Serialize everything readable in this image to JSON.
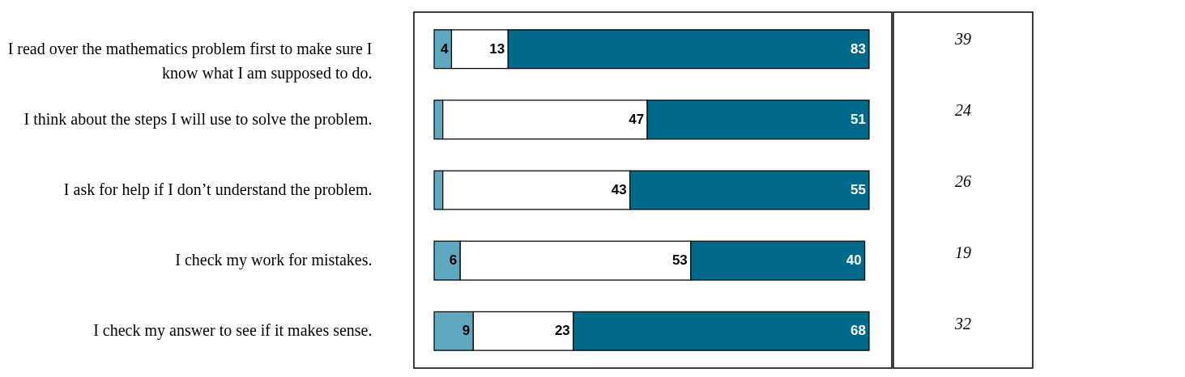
{
  "chart_data": {
    "type": "bar",
    "orientation": "horizontal",
    "stacked": true,
    "categories": [
      "I read over the mathematics problem first to make sure I know what I am supposed to do.",
      "I think about the steps I will use to solve the problem.",
      "I ask for help if I don’t understand the problem.",
      "I check my work for mistakes.",
      "I check my answer to see if it makes sense."
    ],
    "series": [
      {
        "color": "#5fa8c0",
        "values": [
          4,
          2,
          2,
          6,
          9
        ],
        "value_labels": [
          "4",
          null,
          null,
          "6",
          "9"
        ]
      },
      {
        "color": "#ffffff",
        "values": [
          13,
          47,
          43,
          53,
          23
        ],
        "value_labels": [
          "13",
          "47",
          "43",
          "53",
          "23"
        ]
      },
      {
        "color": "#006a8a",
        "values": [
          83,
          51,
          55,
          40,
          68
        ],
        "value_labels": [
          "83",
          "51",
          "55",
          "40",
          "68"
        ]
      }
    ],
    "annotations": [
      "39",
      "24",
      "26",
      "19",
      "32"
    ]
  }
}
